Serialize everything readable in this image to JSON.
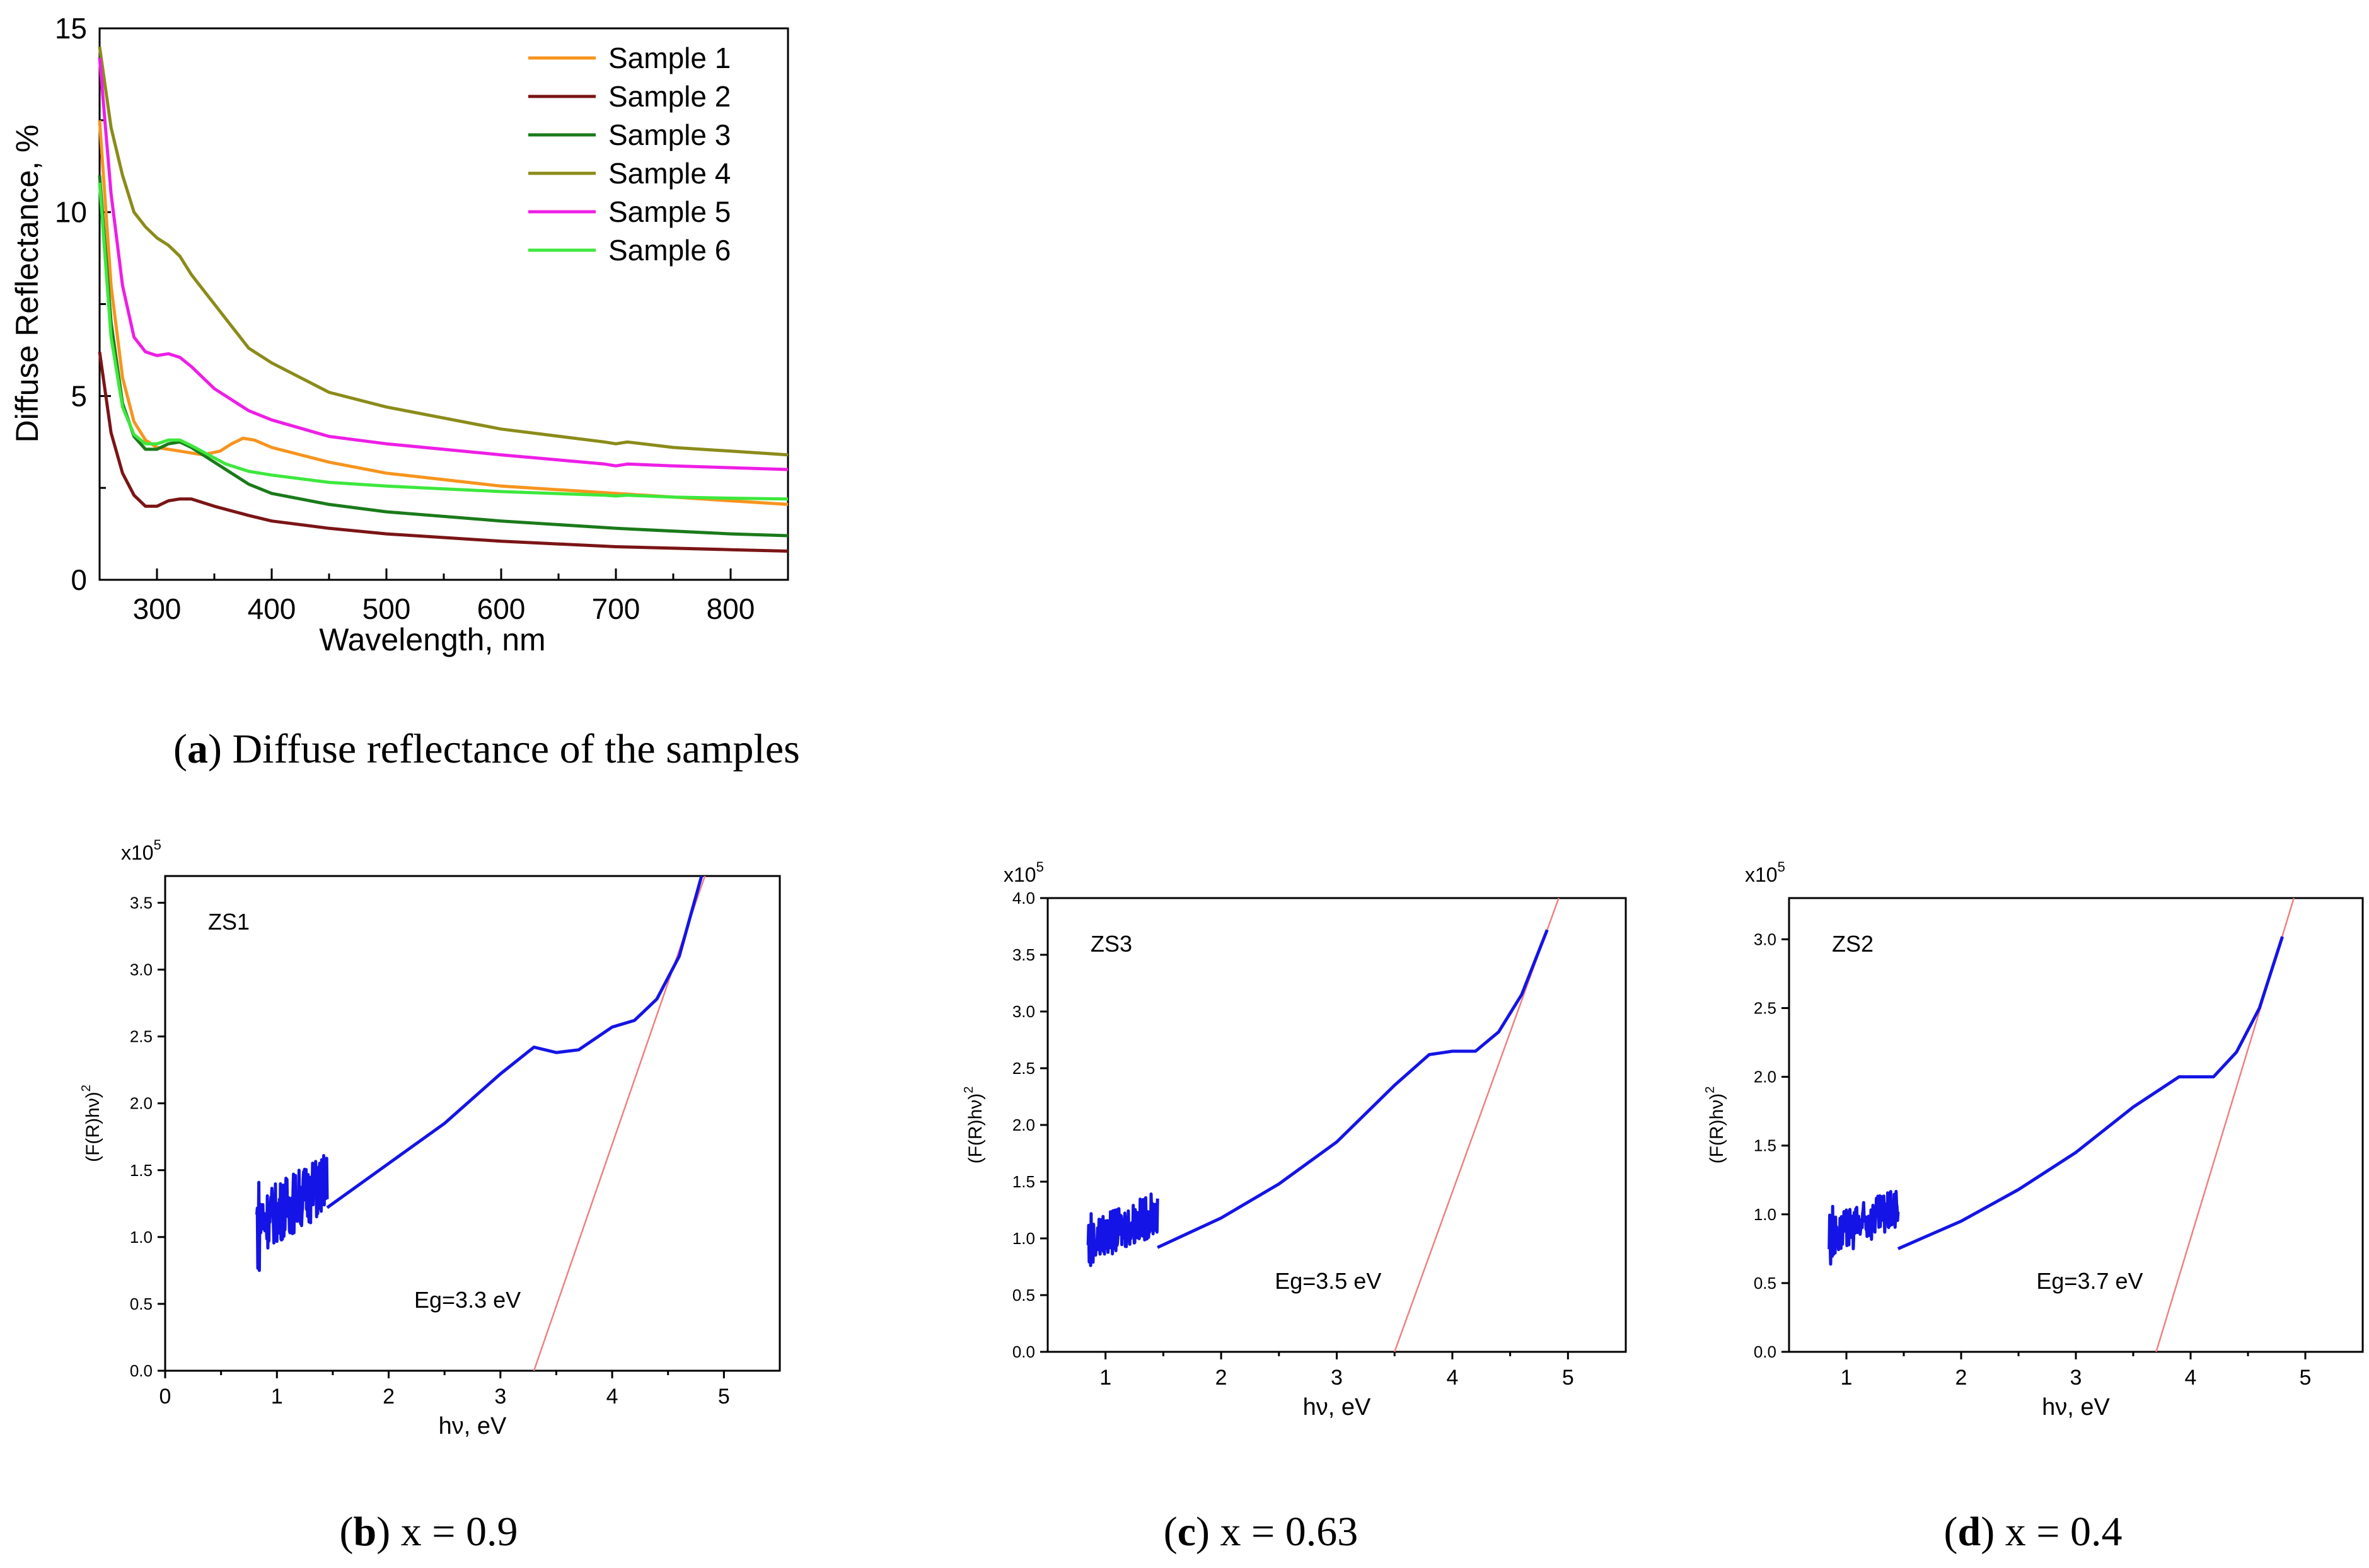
{
  "chart_data": [
    {
      "id": "a",
      "type": "line",
      "title": "",
      "xlabel": "Wavelength, nm",
      "ylabel": "Diffuse Reflectance, %",
      "xlim": [
        250,
        850
      ],
      "ylim": [
        0,
        15
      ],
      "xticks": [
        300,
        400,
        500,
        600,
        700,
        800
      ],
      "yticks": [
        0,
        5,
        10,
        15
      ],
      "legend_position": "top-right",
      "caption_letter": "a",
      "caption_rest": ") Diffuse reflectance of the samples",
      "caption_open": "(",
      "series": [
        {
          "name": "Sample 1",
          "color": "#f7941d",
          "points": [
            [
              250,
              12.5
            ],
            [
              260,
              8.0
            ],
            [
              270,
              5.5
            ],
            [
              280,
              4.3
            ],
            [
              290,
              3.8
            ],
            [
              300,
              3.6
            ],
            [
              320,
              3.5
            ],
            [
              340,
              3.4
            ],
            [
              355,
              3.5
            ],
            [
              365,
              3.7
            ],
            [
              375,
              3.85
            ],
            [
              385,
              3.8
            ],
            [
              400,
              3.6
            ],
            [
              450,
              3.2
            ],
            [
              500,
              2.9
            ],
            [
              600,
              2.55
            ],
            [
              700,
              2.35
            ],
            [
              800,
              2.15
            ],
            [
              850,
              2.05
            ]
          ]
        },
        {
          "name": "Sample 2",
          "color": "#7b1416",
          "points": [
            [
              250,
              6.2
            ],
            [
              260,
              4.0
            ],
            [
              270,
              2.9
            ],
            [
              280,
              2.3
            ],
            [
              290,
              2.0
            ],
            [
              300,
              2.0
            ],
            [
              310,
              2.15
            ],
            [
              320,
              2.2
            ],
            [
              330,
              2.2
            ],
            [
              350,
              2.0
            ],
            [
              380,
              1.75
            ],
            [
              400,
              1.6
            ],
            [
              450,
              1.4
            ],
            [
              500,
              1.25
            ],
            [
              600,
              1.05
            ],
            [
              700,
              0.9
            ],
            [
              800,
              0.82
            ],
            [
              850,
              0.78
            ]
          ]
        },
        {
          "name": "Sample 3",
          "color": "#1a7a1a",
          "points": [
            [
              250,
              11.0
            ],
            [
              260,
              7.0
            ],
            [
              270,
              4.8
            ],
            [
              280,
              3.9
            ],
            [
              290,
              3.55
            ],
            [
              300,
              3.55
            ],
            [
              310,
              3.7
            ],
            [
              320,
              3.75
            ],
            [
              330,
              3.6
            ],
            [
              340,
              3.4
            ],
            [
              360,
              3.0
            ],
            [
              380,
              2.6
            ],
            [
              400,
              2.35
            ],
            [
              450,
              2.05
            ],
            [
              500,
              1.85
            ],
            [
              600,
              1.6
            ],
            [
              700,
              1.4
            ],
            [
              800,
              1.25
            ],
            [
              850,
              1.2
            ]
          ]
        },
        {
          "name": "Sample 4",
          "color": "#8b8b1a",
          "points": [
            [
              250,
              14.5
            ],
            [
              260,
              12.3
            ],
            [
              270,
              11.0
            ],
            [
              280,
              10.0
            ],
            [
              290,
              9.6
            ],
            [
              300,
              9.3
            ],
            [
              310,
              9.1
            ],
            [
              320,
              8.8
            ],
            [
              330,
              8.3
            ],
            [
              350,
              7.5
            ],
            [
              380,
              6.3
            ],
            [
              400,
              5.9
            ],
            [
              450,
              5.1
            ],
            [
              500,
              4.7
            ],
            [
              600,
              4.1
            ],
            [
              690,
              3.75
            ],
            [
              700,
              3.7
            ],
            [
              710,
              3.75
            ],
            [
              750,
              3.6
            ],
            [
              800,
              3.5
            ],
            [
              850,
              3.4
            ]
          ]
        },
        {
          "name": "Sample 5",
          "color": "#ee1ee6",
          "points": [
            [
              250,
              14.2
            ],
            [
              260,
              10.5
            ],
            [
              270,
              8.0
            ],
            [
              280,
              6.6
            ],
            [
              290,
              6.2
            ],
            [
              300,
              6.1
            ],
            [
              310,
              6.15
            ],
            [
              320,
              6.05
            ],
            [
              330,
              5.8
            ],
            [
              350,
              5.2
            ],
            [
              380,
              4.6
            ],
            [
              400,
              4.35
            ],
            [
              450,
              3.9
            ],
            [
              500,
              3.7
            ],
            [
              600,
              3.4
            ],
            [
              690,
              3.15
            ],
            [
              700,
              3.1
            ],
            [
              710,
              3.15
            ],
            [
              750,
              3.1
            ],
            [
              800,
              3.05
            ],
            [
              850,
              3.0
            ]
          ]
        },
        {
          "name": "Sample 6",
          "color": "#3de83d",
          "points": [
            [
              250,
              10.8
            ],
            [
              260,
              6.6
            ],
            [
              270,
              4.7
            ],
            [
              280,
              3.95
            ],
            [
              290,
              3.7
            ],
            [
              300,
              3.7
            ],
            [
              310,
              3.8
            ],
            [
              320,
              3.8
            ],
            [
              330,
              3.65
            ],
            [
              345,
              3.4
            ],
            [
              360,
              3.15
            ],
            [
              380,
              2.95
            ],
            [
              400,
              2.85
            ],
            [
              450,
              2.65
            ],
            [
              500,
              2.55
            ],
            [
              600,
              2.4
            ],
            [
              690,
              2.3
            ],
            [
              700,
              2.28
            ],
            [
              710,
              2.3
            ],
            [
              750,
              2.25
            ],
            [
              800,
              2.22
            ],
            [
              850,
              2.2
            ]
          ]
        }
      ]
    },
    {
      "id": "b",
      "type": "line",
      "xlabel": "hν, eV",
      "ylabel_main": "(F(R)hν)",
      "ylabel_sup": "2",
      "scale_label": "x10",
      "scale_sup": "5",
      "xlim": [
        0,
        5.5
      ],
      "ylim": [
        0,
        3.7
      ],
      "xticks": [
        0,
        1,
        2,
        3,
        4,
        5
      ],
      "yticks": [
        "0.0",
        "0.5",
        "1.0",
        "1.5",
        "2.0",
        "2.5",
        "3.0",
        "3.5"
      ],
      "sample_label": "ZS1",
      "eg_label": "Eg=3.3 eV",
      "caption_letter": "b",
      "caption_rest": ") x = 0.9",
      "caption_open": "(",
      "noise_range": [
        0.82,
        1.45,
        0.6,
        1.5
      ],
      "curve": [
        [
          1.45,
          1.22
        ],
        [
          2.0,
          1.55
        ],
        [
          2.5,
          1.85
        ],
        [
          3.0,
          2.22
        ],
        [
          3.3,
          2.42
        ],
        [
          3.5,
          2.38
        ],
        [
          3.7,
          2.4
        ],
        [
          4.0,
          2.57
        ],
        [
          4.2,
          2.62
        ],
        [
          4.4,
          2.78
        ],
        [
          4.6,
          3.1
        ],
        [
          4.8,
          3.7
        ]
      ],
      "fit_line": [
        [
          3.3,
          0.0
        ],
        [
          4.83,
          3.7
        ]
      ]
    },
    {
      "id": "c",
      "type": "line",
      "xlabel": "hν, eV",
      "ylabel_main": "(F(R)hν)",
      "ylabel_sup": "2",
      "scale_label": "x10",
      "scale_sup": "5",
      "xlim": [
        0.5,
        5.5
      ],
      "ylim": [
        0,
        4.0
      ],
      "xticks": [
        1,
        2,
        3,
        4,
        5
      ],
      "yticks": [
        "0.0",
        "0.5",
        "1.0",
        "1.5",
        "2.0",
        "2.5",
        "3.0",
        "3.5",
        "4.0"
      ],
      "sample_label": "ZS3",
      "eg_label": "Eg=3.5 eV",
      "caption_letter": "c",
      "caption_rest": ") x = 0.63",
      "caption_open": "(",
      "noise_range": [
        0.85,
        1.45,
        0.55,
        1.3
      ],
      "curve": [
        [
          1.45,
          0.92
        ],
        [
          2.0,
          1.18
        ],
        [
          2.5,
          1.48
        ],
        [
          3.0,
          1.85
        ],
        [
          3.5,
          2.35
        ],
        [
          3.8,
          2.62
        ],
        [
          4.0,
          2.65
        ],
        [
          4.2,
          2.65
        ],
        [
          4.4,
          2.82
        ],
        [
          4.6,
          3.15
        ],
        [
          4.82,
          3.72
        ]
      ],
      "fit_line": [
        [
          3.5,
          0.0
        ],
        [
          4.92,
          4.0
        ]
      ]
    },
    {
      "id": "d",
      "type": "line",
      "xlabel": "hν, eV",
      "ylabel_main": "(F(R)hν)",
      "ylabel_sup": "2",
      "scale_label": "x10",
      "scale_sup": "5",
      "xlim": [
        0.5,
        5.5
      ],
      "ylim": [
        0,
        3.3
      ],
      "xticks": [
        1,
        2,
        3,
        4,
        5
      ],
      "yticks": [
        "0.0",
        "0.5",
        "1.0",
        "1.5",
        "2.0",
        "2.5",
        "3.0"
      ],
      "sample_label": "ZS2",
      "eg_label": "Eg=3.7 eV",
      "caption_letter": "d",
      "caption_rest": ") x = 0.4",
      "caption_open": "(",
      "noise_range": [
        0.85,
        1.45,
        0.5,
        1.1
      ],
      "curve": [
        [
          1.45,
          0.75
        ],
        [
          2.0,
          0.95
        ],
        [
          2.5,
          1.18
        ],
        [
          3.0,
          1.45
        ],
        [
          3.5,
          1.78
        ],
        [
          3.9,
          2.0
        ],
        [
          4.0,
          2.0
        ],
        [
          4.2,
          2.0
        ],
        [
          4.4,
          2.18
        ],
        [
          4.6,
          2.5
        ],
        [
          4.8,
          3.02
        ]
      ],
      "fit_line": [
        [
          3.7,
          0.0
        ],
        [
          4.9,
          3.3
        ]
      ]
    }
  ]
}
